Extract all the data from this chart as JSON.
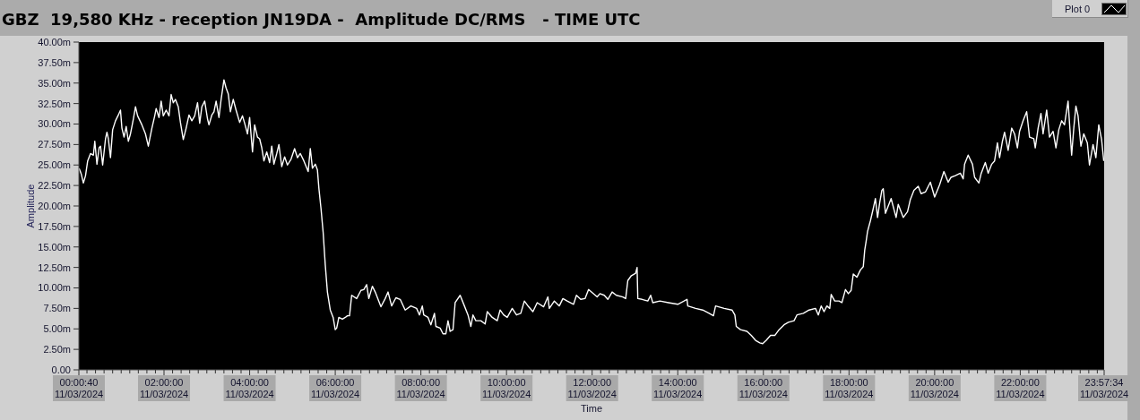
{
  "chart_data": {
    "type": "line",
    "title": "GBZ  19,580 KHz - reception JN19DA -  Amplitude DC/RMS   - TIME UTC",
    "xlabel": "Time",
    "ylabel": "Amplitude",
    "x": [
      "2024-03-11T00:01",
      "2024-03-11T00:04",
      "2024-03-11T00:07",
      "2024-03-11T00:10",
      "2024-03-11T00:13",
      "2024-03-11T00:17",
      "2024-03-11T00:21",
      "2024-03-11T00:23",
      "2024-03-11T00:26",
      "2024-03-11T00:29",
      "2024-03-11T00:31",
      "2024-03-11T00:34",
      "2024-03-11T00:38",
      "2024-03-11T00:40",
      "2024-03-11T00:42",
      "2024-03-11T00:45",
      "2024-03-11T00:48",
      "2024-03-11T00:52",
      "2024-03-11T00:56",
      "2024-03-11T00:59",
      "2024-03-11T01:01",
      "2024-03-11T01:04",
      "2024-03-11T01:07",
      "2024-03-11T01:10",
      "2024-03-11T01:13",
      "2024-03-11T01:17",
      "2024-03-11T01:20",
      "2024-03-11T01:23",
      "2024-03-11T01:29",
      "2024-03-11T01:34",
      "2024-03-11T01:38",
      "2024-03-11T01:43",
      "2024-03-11T01:47",
      "2024-03-11T01:49",
      "2024-03-11T01:53",
      "2024-03-11T01:56",
      "2024-03-11T01:59",
      "2024-03-11T02:03",
      "2024-03-11T02:07",
      "2024-03-11T02:10",
      "2024-03-11T02:13",
      "2024-03-11T02:16",
      "2024-03-11T02:20",
      "2024-03-11T02:23",
      "2024-03-11T02:27",
      "2024-03-11T02:31",
      "2024-03-11T02:35",
      "2024-03-11T02:39",
      "2024-03-11T02:43",
      "2024-03-11T02:47",
      "2024-03-11T02:50",
      "2024-03-11T02:53",
      "2024-03-11T02:57",
      "2024-03-11T03:01",
      "2024-03-11T03:03",
      "2024-03-11T03:07",
      "2024-03-11T03:10",
      "2024-03-11T03:13",
      "2024-03-11T03:17",
      "2024-03-11T03:20",
      "2024-03-11T03:24",
      "2024-03-11T03:27",
      "2024-03-11T03:30",
      "2024-03-11T03:33",
      "2024-03-11T03:37",
      "2024-03-11T03:41",
      "2024-03-11T03:46",
      "2024-03-11T03:50",
      "2024-03-11T03:53",
      "2024-03-11T03:57",
      "2024-03-11T04:00",
      "2024-03-11T04:04",
      "2024-03-11T04:07",
      "2024-03-11T04:11",
      "2024-03-11T04:14",
      "2024-03-11T04:17",
      "2024-03-11T04:20",
      "2024-03-11T04:24",
      "2024-03-11T04:28",
      "2024-03-11T04:31",
      "2024-03-11T04:34",
      "2024-03-11T04:38",
      "2024-03-11T04:41",
      "2024-03-11T04:45",
      "2024-03-11T04:49",
      "2024-03-11T04:53",
      "2024-03-11T04:58",
      "2024-03-11T05:03",
      "2024-03-11T05:07",
      "2024-03-11T05:11",
      "2024-03-11T05:16",
      "2024-03-11T05:22",
      "2024-03-11T05:25",
      "2024-03-11T05:28",
      "2024-03-11T05:32",
      "2024-03-11T05:35",
      "2024-03-11T05:37",
      "2024-03-11T05:40",
      "2024-03-11T05:43",
      "2024-03-11T05:46",
      "2024-03-11T05:49",
      "2024-03-11T05:53",
      "2024-03-11T05:57",
      "2024-03-11T06:00",
      "2024-03-11T06:02",
      "2024-03-11T06:05",
      "2024-03-11T06:10",
      "2024-03-11T06:14",
      "2024-03-11T06:17",
      "2024-03-11T06:20",
      "2024-03-11T06:23",
      "2024-03-11T06:30",
      "2024-03-11T06:36",
      "2024-03-11T06:40",
      "2024-03-11T06:44",
      "2024-03-11T06:47",
      "2024-03-11T06:52",
      "2024-03-11T06:56",
      "2024-03-11T07:04",
      "2024-03-11T07:10",
      "2024-03-11T07:14",
      "2024-03-11T07:19",
      "2024-03-11T07:25",
      "2024-03-11T07:31",
      "2024-03-11T07:38",
      "2024-03-11T07:46",
      "2024-03-11T07:54",
      "2024-03-11T07:58",
      "2024-03-11T08:02",
      "2024-03-11T08:04",
      "2024-03-11T08:10",
      "2024-03-11T08:14",
      "2024-03-11T08:19",
      "2024-03-11T08:21",
      "2024-03-11T08:27",
      "2024-03-11T08:31",
      "2024-03-11T08:35",
      "2024-03-11T08:38",
      "2024-03-11T08:41",
      "2024-03-11T08:45",
      "2024-03-11T08:48",
      "2024-03-11T08:55",
      "2024-03-11T09:01",
      "2024-03-11T09:06",
      "2024-03-11T09:10",
      "2024-03-11T09:13",
      "2024-03-11T09:17",
      "2024-03-11T09:24",
      "2024-03-11T09:30",
      "2024-03-11T09:33",
      "2024-03-11T09:40",
      "2024-03-11T09:47",
      "2024-03-11T09:51",
      "2024-03-11T09:56",
      "2024-03-11T10:01",
      "2024-03-11T10:08",
      "2024-03-11T10:14",
      "2024-03-11T10:20",
      "2024-03-11T10:25",
      "2024-03-11T10:31",
      "2024-03-11T10:37",
      "2024-03-11T10:43",
      "2024-03-11T10:52",
      "2024-03-11T10:58",
      "2024-03-11T11:00",
      "2024-03-11T11:07",
      "2024-03-11T11:14",
      "2024-03-11T11:19",
      "2024-03-11T11:25",
      "2024-03-11T11:34",
      "2024-03-11T11:38",
      "2024-03-11T11:44",
      "2024-03-11T11:50",
      "2024-03-11T11:55",
      "2024-03-11T11:59",
      "2024-03-11T12:07",
      "2024-03-11T12:11",
      "2024-03-11T12:17",
      "2024-03-11T12:22",
      "2024-03-11T12:28",
      "2024-03-11T12:34",
      "2024-03-11T12:43",
      "2024-03-11T12:47",
      "2024-03-11T12:50",
      "2024-03-11T12:55",
      "2024-03-11T13:01",
      "2024-03-11T13:03",
      "2024-03-11T13:04",
      "2024-03-11T13:10",
      "2024-03-11T13:18",
      "2024-03-11T13:22",
      "2024-03-11T13:25",
      "2024-03-11T13:35",
      "2024-03-11T13:47",
      "2024-03-11T14:00",
      "2024-03-11T14:13",
      "2024-03-11T14:14",
      "2024-03-11T14:25",
      "2024-03-11T14:35",
      "2024-03-11T14:44",
      "2024-03-11T14:50",
      "2024-03-11T14:53",
      "2024-03-11T15:05",
      "2024-03-11T15:16",
      "2024-03-11T15:20",
      "2024-03-11T15:22",
      "2024-03-11T15:28",
      "2024-03-11T15:37",
      "2024-03-11T15:43",
      "2024-03-11T15:49",
      "2024-03-11T15:55",
      "2024-03-11T15:59",
      "2024-03-11T16:04",
      "2024-03-11T16:10",
      "2024-03-11T16:16",
      "2024-03-11T16:22",
      "2024-03-11T16:29",
      "2024-03-11T16:35",
      "2024-03-11T16:43",
      "2024-03-11T16:47",
      "2024-03-11T16:56",
      "2024-03-11T17:04",
      "2024-03-11T17:13",
      "2024-03-11T17:17",
      "2024-03-11T17:21",
      "2024-03-11T17:25",
      "2024-03-11T17:29",
      "2024-03-11T17:33",
      "2024-03-11T17:35",
      "2024-03-11T17:40",
      "2024-03-11T17:46",
      "2024-03-11T17:50",
      "2024-03-11T17:55",
      "2024-03-11T17:59",
      "2024-03-11T18:03",
      "2024-03-11T18:06",
      "2024-03-11T18:11",
      "2024-03-11T18:16",
      "2024-03-11T18:20",
      "2024-03-11T18:22",
      "2024-03-11T18:24",
      "2024-03-11T18:26",
      "2024-03-11T18:30",
      "2024-03-11T18:34",
      "2024-03-11T18:37",
      "2024-03-11T18:40",
      "2024-03-11T18:43",
      "2024-03-11T18:46",
      "2024-03-11T18:48",
      "2024-03-11T18:51",
      "2024-03-11T18:55",
      "2024-03-11T18:59",
      "2024-03-11T19:06",
      "2024-03-11T19:09",
      "2024-03-11T19:16",
      "2024-03-11T19:22",
      "2024-03-11T19:26",
      "2024-03-11T19:31",
      "2024-03-11T19:37",
      "2024-03-11T19:41",
      "2024-03-11T19:47",
      "2024-03-11T19:54",
      "2024-03-11T20:00",
      "2024-03-11T20:07",
      "2024-03-11T20:13",
      "2024-03-11T20:19",
      "2024-03-11T20:23",
      "2024-03-11T20:29",
      "2024-03-11T20:36",
      "2024-03-11T20:40",
      "2024-03-11T20:42",
      "2024-03-11T20:47",
      "2024-03-11T20:53",
      "2024-03-11T20:56",
      "2024-03-11T21:02",
      "2024-03-11T21:05",
      "2024-03-11T21:11",
      "2024-03-11T21:15",
      "2024-03-11T21:20",
      "2024-03-11T21:24",
      "2024-03-11T21:28",
      "2024-03-11T21:31",
      "2024-03-11T21:35",
      "2024-03-11T21:38",
      "2024-03-11T21:43",
      "2024-03-11T21:48",
      "2024-03-11T21:52",
      "2024-03-11T21:56",
      "2024-03-11T21:59",
      "2024-03-11T22:04",
      "2024-03-11T22:09",
      "2024-03-11T22:13",
      "2024-03-11T22:19",
      "2024-03-11T22:21",
      "2024-03-11T22:25",
      "2024-03-11T22:29",
      "2024-03-11T22:32",
      "2024-03-11T22:37",
      "2024-03-11T22:41",
      "2024-03-11T22:46",
      "2024-03-11T22:50",
      "2024-03-11T22:54",
      "2024-03-11T22:58",
      "2024-03-11T23:02",
      "2024-03-11T23:07",
      "2024-03-11T23:12",
      "2024-03-11T23:15",
      "2024-03-11T23:18",
      "2024-03-11T23:21",
      "2024-03-11T23:25",
      "2024-03-11T23:29",
      "2024-03-11T23:34",
      "2024-03-11T23:37",
      "2024-03-11T23:42",
      "2024-03-11T23:46",
      "2024-03-11T23:50",
      "2024-03-11T23:54",
      "2024-03-11T23:57"
    ],
    "series": [
      {
        "name": "Plot 0",
        "color": "#ffffff",
        "values": [
          24.6,
          23.9,
          22.8,
          23.7,
          25.5,
          26.4,
          26.2,
          27.9,
          25.1,
          27.1,
          27.3,
          25,
          28.2,
          29,
          28.2,
          25.9,
          29.3,
          30.4,
          31.1,
          31.7,
          29.5,
          28.4,
          29.7,
          27.9,
          28.8,
          30.6,
          32.1,
          31,
          29.9,
          28.8,
          27.3,
          29.5,
          31,
          31.9,
          30.8,
          32.8,
          31,
          31.7,
          31,
          33.6,
          32.6,
          33,
          32.1,
          30.2,
          28.1,
          29.5,
          31.1,
          30.4,
          31,
          32.6,
          30.1,
          32.1,
          32.8,
          30.6,
          29.9,
          31.1,
          31.5,
          32.8,
          30.8,
          33,
          35.4,
          34.4,
          33.7,
          31.5,
          33,
          31.7,
          30.2,
          31,
          30.1,
          28.8,
          30.8,
          26.6,
          29.9,
          28.4,
          28.2,
          27.1,
          25.5,
          26.6,
          25.3,
          27.3,
          25.1,
          26.4,
          27.5,
          24.8,
          26,
          25,
          25.7,
          27,
          25.9,
          26.4,
          25.5,
          24.2,
          27,
          24.6,
          25.1,
          24.4,
          22.2,
          19.7,
          16.8,
          12.8,
          9.5,
          7.3,
          6.4,
          4.9,
          5.1,
          6.4,
          6.2,
          6.4,
          6.6,
          6.6,
          9.1,
          8.7,
          9.7,
          9.8,
          10.4,
          8.7,
          10.2,
          9.5,
          7.7,
          8.7,
          9.5,
          7.8,
          8.8,
          8.6,
          7.3,
          7.8,
          7.5,
          6.7,
          7.8,
          6.7,
          6.4,
          5.5,
          6.9,
          5.3,
          5.1,
          4.4,
          4.4,
          6,
          4.7,
          4.9,
          8.2,
          9.1,
          7.8,
          6.7,
          5.3,
          6.7,
          6,
          6,
          5.6,
          7.1,
          6.4,
          6,
          7.3,
          6.7,
          6.4,
          7.5,
          6.7,
          6.9,
          8.4,
          7.7,
          7.1,
          8.2,
          7.7,
          8.9,
          7.5,
          8.4,
          7.8,
          8.7,
          8.4,
          8,
          9.1,
          8.6,
          8.7,
          9.8,
          9.5,
          8.9,
          9.3,
          9.1,
          8.6,
          9.5,
          9.1,
          8.9,
          8.7,
          10.9,
          11.5,
          11.8,
          12.5,
          8.7,
          8.6,
          8.4,
          9.1,
          8.2,
          8.4,
          8.2,
          8,
          8.6,
          7.8,
          7.5,
          7.3,
          6.9,
          6.6,
          7.8,
          7.5,
          7.3,
          6.7,
          5.3,
          4.9,
          4.7,
          4.2,
          3.6,
          3.3,
          3.2,
          3.6,
          4.2,
          4.2,
          4.9,
          5.5,
          5.8,
          6,
          6.7,
          6.9,
          7.3,
          7.5,
          6.7,
          7.8,
          7.1,
          7.8,
          7.5,
          9.2,
          8.4,
          8.4,
          8.2,
          9.8,
          9.3,
          9.7,
          11.7,
          11.3,
          12.2,
          12.6,
          14.6,
          15.7,
          16.9,
          18.2,
          19.7,
          20.9,
          18.6,
          20.4,
          21.9,
          22.1,
          19.1,
          20,
          20.9,
          18.6,
          20.2,
          18.6,
          19.3,
          20.8,
          21.9,
          22.4,
          21.5,
          21.7,
          22.9,
          21.1,
          22.6,
          24.2,
          22.9,
          23.5,
          23.7,
          24,
          23.3,
          25.1,
          26.2,
          25.1,
          23.5,
          22.8,
          23.9,
          25.3,
          24,
          25.1,
          25.5,
          27.7,
          25.9,
          27.9,
          29,
          26.8,
          29.5,
          28.8,
          27.1,
          29.1,
          30.4,
          31.5,
          28.4,
          28.2,
          27.1,
          29.5,
          31.3,
          28.8,
          31.7,
          28.4,
          29.1,
          27.1,
          29.3,
          30.4,
          29.9,
          32.8,
          26.2,
          29.5,
          32.2,
          31,
          27.3,
          28.8,
          27.7,
          25,
          27.5,
          25.9,
          29.9,
          28.1,
          25.5
        ]
      }
    ],
    "xlim": [
      "2024-03-11T00:00:40",
      "2024-03-11T23:57:34"
    ],
    "xticks": [
      {
        "value": "2024-03-11T00:00:40",
        "label": "00:00:40\n11/03/2024"
      },
      {
        "value": "2024-03-11T00:12",
        "label": null
      },
      {
        "value": "2024-03-11T00:24",
        "label": null
      },
      {
        "value": "2024-03-11T00:36",
        "label": null
      },
      {
        "value": "2024-03-11T00:48",
        "label": null
      },
      {
        "value": "2024-03-11T01:00",
        "label": null
      },
      {
        "value": "2024-03-11T01:12",
        "label": null
      },
      {
        "value": "2024-03-11T01:24",
        "label": null
      },
      {
        "value": "2024-03-11T01:36",
        "label": null
      },
      {
        "value": "2024-03-11T01:48",
        "label": null
      },
      {
        "value": "2024-03-11T02:00",
        "label": "02:00:00\n11/03/2024"
      },
      {
        "value": "2024-03-11T02:12",
        "label": null
      },
      {
        "value": "2024-03-11T02:24",
        "label": null
      },
      {
        "value": "2024-03-11T02:36",
        "label": null
      },
      {
        "value": "2024-03-11T02:48",
        "label": null
      },
      {
        "value": "2024-03-11T03:00",
        "label": null
      },
      {
        "value": "2024-03-11T03:12",
        "label": null
      },
      {
        "value": "2024-03-11T03:24",
        "label": null
      },
      {
        "value": "2024-03-11T03:36",
        "label": null
      },
      {
        "value": "2024-03-11T03:48",
        "label": null
      },
      {
        "value": "2024-03-11T04:00",
        "label": "04:00:00\n11/03/2024"
      },
      {
        "value": "2024-03-11T04:12",
        "label": null
      },
      {
        "value": "2024-03-11T04:24",
        "label": null
      },
      {
        "value": "2024-03-11T04:36",
        "label": null
      },
      {
        "value": "2024-03-11T04:48",
        "label": null
      },
      {
        "value": "2024-03-11T05:00",
        "label": null
      },
      {
        "value": "2024-03-11T05:12",
        "label": null
      },
      {
        "value": "2024-03-11T05:24",
        "label": null
      },
      {
        "value": "2024-03-11T05:36",
        "label": null
      },
      {
        "value": "2024-03-11T05:48",
        "label": null
      },
      {
        "value": "2024-03-11T06:00",
        "label": "06:00:00\n11/03/2024"
      },
      {
        "value": "2024-03-11T06:12",
        "label": null
      },
      {
        "value": "2024-03-11T06:24",
        "label": null
      },
      {
        "value": "2024-03-11T06:36",
        "label": null
      },
      {
        "value": "2024-03-11T06:48",
        "label": null
      },
      {
        "value": "2024-03-11T07:00",
        "label": null
      },
      {
        "value": "2024-03-11T07:12",
        "label": null
      },
      {
        "value": "2024-03-11T07:24",
        "label": null
      },
      {
        "value": "2024-03-11T07:36",
        "label": null
      },
      {
        "value": "2024-03-11T07:48",
        "label": null
      },
      {
        "value": "2024-03-11T08:00",
        "label": "08:00:00\n11/03/2024"
      },
      {
        "value": "2024-03-11T08:12",
        "label": null
      },
      {
        "value": "2024-03-11T08:24",
        "label": null
      },
      {
        "value": "2024-03-11T08:36",
        "label": null
      },
      {
        "value": "2024-03-11T08:48",
        "label": null
      },
      {
        "value": "2024-03-11T09:00",
        "label": null
      },
      {
        "value": "2024-03-11T09:12",
        "label": null
      },
      {
        "value": "2024-03-11T09:24",
        "label": null
      },
      {
        "value": "2024-03-11T09:36",
        "label": null
      },
      {
        "value": "2024-03-11T09:48",
        "label": null
      },
      {
        "value": "2024-03-11T10:00",
        "label": "10:00:00\n11/03/2024"
      },
      {
        "value": "2024-03-11T10:12",
        "label": null
      },
      {
        "value": "2024-03-11T10:24",
        "label": null
      },
      {
        "value": "2024-03-11T10:36",
        "label": null
      },
      {
        "value": "2024-03-11T10:48",
        "label": null
      },
      {
        "value": "2024-03-11T11:00",
        "label": null
      },
      {
        "value": "2024-03-11T11:12",
        "label": null
      },
      {
        "value": "2024-03-11T11:24",
        "label": null
      },
      {
        "value": "2024-03-11T11:36",
        "label": null
      },
      {
        "value": "2024-03-11T11:48",
        "label": null
      },
      {
        "value": "2024-03-11T12:00",
        "label": "12:00:00\n11/03/2024"
      },
      {
        "value": "2024-03-11T12:12",
        "label": null
      },
      {
        "value": "2024-03-11T12:24",
        "label": null
      },
      {
        "value": "2024-03-11T12:36",
        "label": null
      },
      {
        "value": "2024-03-11T12:48",
        "label": null
      },
      {
        "value": "2024-03-11T13:00",
        "label": null
      },
      {
        "value": "2024-03-11T13:12",
        "label": null
      },
      {
        "value": "2024-03-11T13:24",
        "label": null
      },
      {
        "value": "2024-03-11T13:36",
        "label": null
      },
      {
        "value": "2024-03-11T13:48",
        "label": null
      },
      {
        "value": "2024-03-11T14:00",
        "label": "14:00:00\n11/03/2024"
      },
      {
        "value": "2024-03-11T14:12",
        "label": null
      },
      {
        "value": "2024-03-11T14:24",
        "label": null
      },
      {
        "value": "2024-03-11T14:36",
        "label": null
      },
      {
        "value": "2024-03-11T14:48",
        "label": null
      },
      {
        "value": "2024-03-11T15:00",
        "label": null
      },
      {
        "value": "2024-03-11T15:12",
        "label": null
      },
      {
        "value": "2024-03-11T15:24",
        "label": null
      },
      {
        "value": "2024-03-11T15:36",
        "label": null
      },
      {
        "value": "2024-03-11T15:48",
        "label": null
      },
      {
        "value": "2024-03-11T16:00",
        "label": "16:00:00\n11/03/2024"
      },
      {
        "value": "2024-03-11T16:12",
        "label": null
      },
      {
        "value": "2024-03-11T16:24",
        "label": null
      },
      {
        "value": "2024-03-11T16:36",
        "label": null
      },
      {
        "value": "2024-03-11T16:48",
        "label": null
      },
      {
        "value": "2024-03-11T17:00",
        "label": null
      },
      {
        "value": "2024-03-11T17:12",
        "label": null
      },
      {
        "value": "2024-03-11T17:24",
        "label": null
      },
      {
        "value": "2024-03-11T17:36",
        "label": null
      },
      {
        "value": "2024-03-11T17:48",
        "label": null
      },
      {
        "value": "2024-03-11T18:00",
        "label": "18:00:00\n11/03/2024"
      },
      {
        "value": "2024-03-11T18:12",
        "label": null
      },
      {
        "value": "2024-03-11T18:24",
        "label": null
      },
      {
        "value": "2024-03-11T18:36",
        "label": null
      },
      {
        "value": "2024-03-11T18:48",
        "label": null
      },
      {
        "value": "2024-03-11T19:00",
        "label": null
      },
      {
        "value": "2024-03-11T19:12",
        "label": null
      },
      {
        "value": "2024-03-11T19:24",
        "label": null
      },
      {
        "value": "2024-03-11T19:36",
        "label": null
      },
      {
        "value": "2024-03-11T19:48",
        "label": null
      },
      {
        "value": "2024-03-11T20:00",
        "label": "20:00:00\n11/03/2024"
      },
      {
        "value": "2024-03-11T20:12",
        "label": null
      },
      {
        "value": "2024-03-11T20:24",
        "label": null
      },
      {
        "value": "2024-03-11T20:36",
        "label": null
      },
      {
        "value": "2024-03-11T20:48",
        "label": null
      },
      {
        "value": "2024-03-11T21:00",
        "label": null
      },
      {
        "value": "2024-03-11T21:12",
        "label": null
      },
      {
        "value": "2024-03-11T21:24",
        "label": null
      },
      {
        "value": "2024-03-11T21:36",
        "label": null
      },
      {
        "value": "2024-03-11T21:48",
        "label": null
      },
      {
        "value": "2024-03-11T22:00",
        "label": "22:00:00\n11/03/2024"
      },
      {
        "value": "2024-03-11T22:12",
        "label": null
      },
      {
        "value": "2024-03-11T22:24",
        "label": null
      },
      {
        "value": "2024-03-11T22:36",
        "label": null
      },
      {
        "value": "2024-03-11T22:48",
        "label": null
      },
      {
        "value": "2024-03-11T23:00",
        "label": null
      },
      {
        "value": "2024-03-11T23:12",
        "label": null
      },
      {
        "value": "2024-03-11T23:24",
        "label": null
      },
      {
        "value": "2024-03-11T23:36",
        "label": null
      },
      {
        "value": "2024-03-11T23:48",
        "label": null
      },
      {
        "value": "2024-03-11T23:57:34",
        "label": "23:57:34\n11/03/2024"
      }
    ],
    "ylim": [
      0,
      40
    ],
    "yticks": [
      {
        "value": 0,
        "label": "0.00"
      },
      {
        "value": 2.5,
        "label": "2.50m"
      },
      {
        "value": 5,
        "label": "5.00m"
      },
      {
        "value": 7.5,
        "label": "7.50m"
      },
      {
        "value": 10,
        "label": "10.00m"
      },
      {
        "value": 12.5,
        "label": "12.50m"
      },
      {
        "value": 15,
        "label": "15.00m"
      },
      {
        "value": 17.5,
        "label": "17.50m"
      },
      {
        "value": 20,
        "label": "20.00m"
      },
      {
        "value": 22.5,
        "label": "22.50m"
      },
      {
        "value": 25,
        "label": "25.00m"
      },
      {
        "value": 27.5,
        "label": "27.50m"
      },
      {
        "value": 30,
        "label": "30.00m"
      },
      {
        "value": 32.5,
        "label": "32.50m"
      },
      {
        "value": 35,
        "label": "35.00m"
      },
      {
        "value": 37.5,
        "label": "37.50m"
      },
      {
        "value": 40,
        "label": "40.00m"
      }
    ],
    "legend": "top right",
    "marker": "none",
    "line_style": "solid"
  }
}
